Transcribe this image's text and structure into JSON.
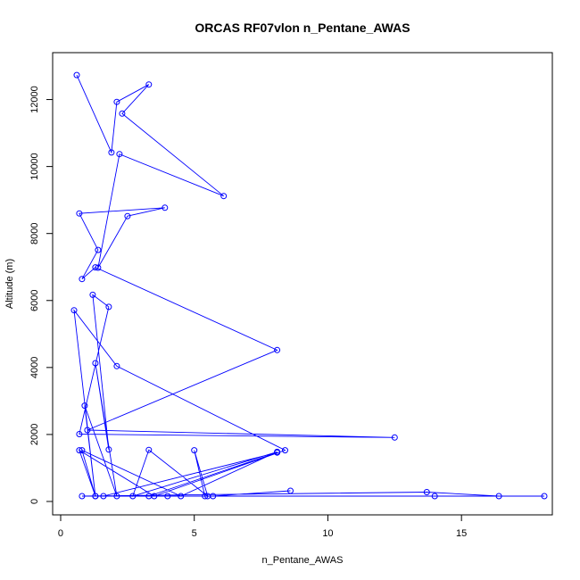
{
  "chart_data": {
    "type": "line",
    "title": "ORCAS RF07vlon n_Pentane_AWAS",
    "xlabel": "n_Pentane_AWAS",
    "ylabel": "Altitude (m)",
    "xlim": [
      -0.3,
      18.4
    ],
    "ylim": [
      -400,
      13400
    ],
    "xticks": [
      0,
      5,
      10,
      15
    ],
    "yticks": [
      0,
      2000,
      4000,
      6000,
      8000,
      10000,
      12000
    ],
    "grid": false,
    "marker": "open-circle",
    "color": "#0000ff",
    "series": [
      {
        "points": [
          [
            0.6,
            12730
          ],
          [
            1.9,
            10420
          ],
          [
            2.1,
            11930
          ],
          [
            3.3,
            12450
          ],
          [
            2.3,
            11580
          ],
          [
            6.1,
            9120
          ],
          [
            2.2,
            10370
          ],
          [
            1.4,
            6980
          ],
          [
            2.5,
            8520
          ],
          [
            3.9,
            8770
          ],
          [
            0.7,
            8600
          ],
          [
            1.4,
            7510
          ],
          [
            0.8,
            6640
          ],
          [
            1.3,
            6990
          ],
          [
            8.1,
            4520
          ],
          [
            1.0,
            2130
          ],
          [
            12.5,
            1910
          ],
          [
            0.7,
            2010
          ],
          [
            1.8,
            5810
          ],
          [
            1.2,
            6170
          ],
          [
            1.8,
            1550
          ],
          [
            1.3,
            4130
          ],
          [
            2.1,
            160
          ],
          [
            0.9,
            2860
          ],
          [
            1.3,
            160
          ],
          [
            0.5,
            5710
          ],
          [
            2.1,
            4040
          ],
          [
            8.4,
            1530
          ],
          [
            3.5,
            160
          ],
          [
            0.7,
            1530
          ],
          [
            1.3,
            160
          ],
          [
            0.8,
            1530
          ],
          [
            4.5,
            160
          ],
          [
            8.1,
            1480
          ],
          [
            2.7,
            160
          ],
          [
            3.3,
            1540
          ],
          [
            5.5,
            160
          ],
          [
            5.0,
            1530
          ],
          [
            5.4,
            160
          ],
          [
            0.8,
            160
          ],
          [
            13.7,
            280
          ],
          [
            16.4,
            160
          ],
          [
            18.1,
            160
          ],
          [
            14.0,
            160
          ],
          [
            1.6,
            160
          ],
          [
            8.1,
            1460
          ],
          [
            3.3,
            160
          ],
          [
            4.0,
            160
          ],
          [
            5.7,
            160
          ],
          [
            8.6,
            320
          ]
        ]
      }
    ]
  }
}
